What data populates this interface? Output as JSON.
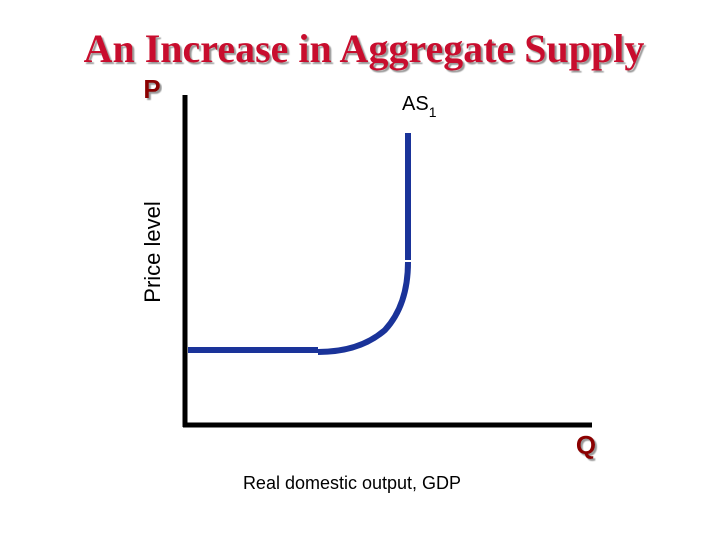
{
  "title": "An Increase in Aggregate Supply",
  "y_axis": {
    "symbol": "P",
    "label": "Price level"
  },
  "x_axis": {
    "symbol": "Q",
    "label": "Real domestic output, GDP"
  },
  "curve": {
    "name": "AS",
    "subscript": "1"
  }
}
